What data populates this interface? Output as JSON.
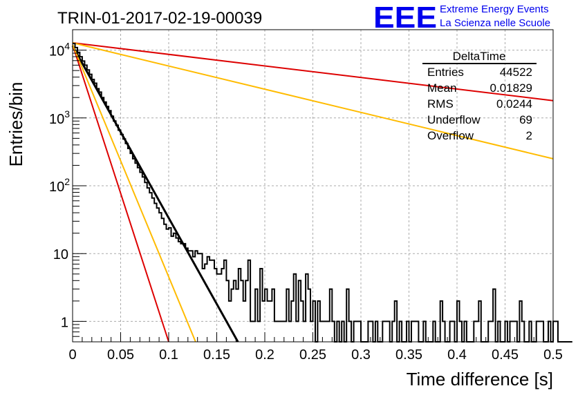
{
  "header": {
    "run_title": "TRIN-01-2017-02-19-00039",
    "logo": "EEE",
    "logo_line1": "Extreme Energy Events",
    "logo_line2": "La Scienza nelle Scuole"
  },
  "stats_box": {
    "title": "DeltaTime",
    "rows": [
      {
        "label": "Entries",
        "value": "44522"
      },
      {
        "label": "Mean",
        "value": "0.01829"
      },
      {
        "label": "RMS",
        "value": "0.0244"
      },
      {
        "label": "Underflow",
        "value": "69"
      },
      {
        "label": "Overflow",
        "value": "2"
      }
    ]
  },
  "colors": {
    "histogram": "#000000",
    "fit_black": "#000000",
    "red": "#dd0000",
    "orange": "#ffbb00",
    "grid": "#aaaaaa",
    "logo_blue": "#0000ee"
  },
  "chart_data": {
    "type": "line",
    "xlabel": "Time difference [s]",
    "ylabel": "Entries/bin",
    "xlim": [
      0,
      0.5
    ],
    "ylim": [
      0.5,
      20000
    ],
    "yscale": "log",
    "grid": true,
    "x_ticks": [
      "0",
      "0.05",
      "0.1",
      "0.15",
      "0.2",
      "0.25",
      "0.3",
      "0.35",
      "0.4",
      "0.45",
      "0.5"
    ],
    "y_ticks": [
      {
        "value": 1,
        "base": "1",
        "exp": ""
      },
      {
        "value": 10,
        "base": "10",
        "exp": ""
      },
      {
        "value": 100,
        "base": "10",
        "exp": "2"
      },
      {
        "value": 1000,
        "base": "10",
        "exp": "3"
      },
      {
        "value": 10000,
        "base": "10",
        "exp": "4"
      }
    ],
    "histogram": {
      "bin_width": 0.0025,
      "x_start": 0,
      "counts": [
        12500,
        10900,
        9300,
        8000,
        6900,
        6000,
        5100,
        4400,
        3700,
        3250,
        2700,
        2400,
        2000,
        1720,
        1480,
        1280,
        1060,
        900,
        780,
        660,
        570,
        490,
        420,
        355,
        300,
        250,
        215,
        185,
        158,
        135,
        112,
        93,
        79,
        66,
        55,
        47,
        40,
        33,
        27,
        23,
        24,
        18,
        20,
        17,
        15,
        14,
        14,
        12,
        11,
        11,
        9,
        11,
        10,
        10,
        6,
        7,
        9,
        8,
        8,
        6,
        5,
        5,
        6,
        8,
        4,
        2,
        3,
        4,
        3,
        6,
        4,
        2,
        4,
        8,
        1,
        1,
        3,
        1,
        6,
        2,
        3,
        2,
        2,
        3,
        1,
        1,
        1,
        1,
        1,
        3,
        1,
        2,
        5,
        1,
        4,
        2,
        1,
        5,
        3,
        1,
        2,
        0,
        2,
        1,
        1,
        1,
        1,
        3,
        1,
        0,
        1,
        0,
        1,
        0,
        3,
        1,
        0,
        1,
        1,
        1,
        0,
        0,
        0,
        1,
        1,
        0,
        1,
        0,
        0,
        1,
        1,
        1,
        0,
        1,
        2,
        0,
        1,
        0,
        0,
        1,
        0,
        1,
        1,
        1,
        0,
        0,
        1,
        0,
        0,
        0,
        1,
        0,
        0,
        2,
        1,
        0,
        0,
        1,
        1,
        0,
        2,
        1,
        0,
        1,
        0,
        0,
        0,
        1,
        1,
        2,
        0,
        0,
        0,
        1,
        1,
        3,
        0,
        1,
        0,
        0,
        1,
        0,
        1,
        1,
        1,
        0,
        2,
        1,
        0,
        0,
        1,
        0,
        0,
        1,
        1,
        1,
        0,
        0,
        1,
        0,
        1,
        1,
        0,
        0,
        0,
        0,
        0,
        0
      ]
    },
    "curves": [
      {
        "color": "#000000",
        "x": [
          0,
          0.172
        ],
        "y": [
          11500,
          0.5
        ]
      },
      {
        "color": "#dd0000",
        "x": [
          0,
          0.1
        ],
        "y": [
          12000,
          0.5
        ]
      },
      {
        "color": "#ffbb00",
        "x": [
          0,
          0.128
        ],
        "y": [
          12000,
          0.5
        ]
      },
      {
        "color": "#dd0000",
        "x": [
          0,
          0.5
        ],
        "y": [
          12800,
          1800
        ]
      },
      {
        "color": "#ffbb00",
        "x": [
          0,
          0.5
        ],
        "y": [
          12800,
          250
        ]
      }
    ]
  }
}
